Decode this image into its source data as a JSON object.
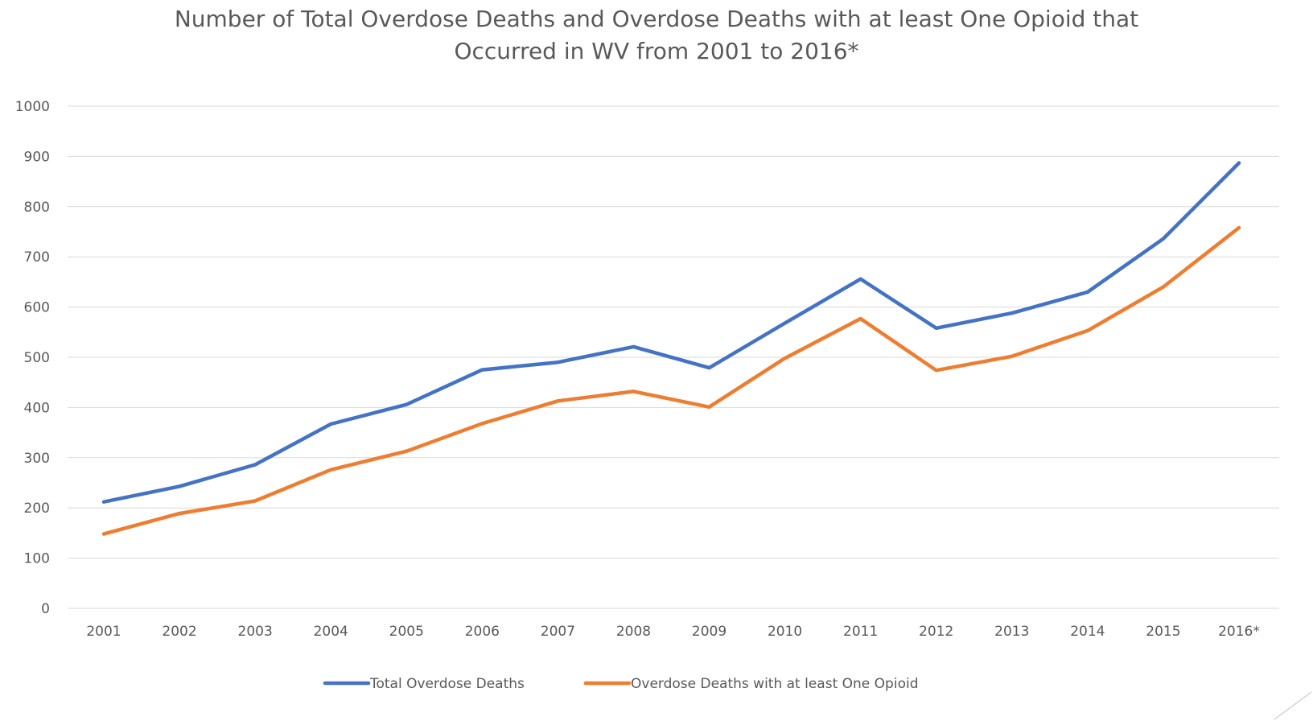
{
  "chart_data": {
    "type": "line",
    "title_lines": [
      "Number of Total Overdose Deaths and Overdose Deaths with at least One Opioid that",
      "Occurred in WV from 2001 to 2016*"
    ],
    "categories": [
      "2001",
      "2002",
      "2003",
      "2004",
      "2005",
      "2006",
      "2007",
      "2008",
      "2009",
      "2010",
      "2011",
      "2012",
      "2013",
      "2014",
      "2015",
      "2016*"
    ],
    "ylim": [
      0,
      1000
    ],
    "yticks": [
      0,
      100,
      200,
      300,
      400,
      500,
      600,
      700,
      800,
      900,
      1000
    ],
    "grid": true,
    "legend_position": "bottom",
    "series": [
      {
        "name": "Total Overdose Deaths",
        "color": "#4472C4",
        "values": [
          212,
          243,
          286,
          367,
          406,
          475,
          490,
          521,
          479,
          568,
          656,
          558,
          588,
          630,
          736,
          887
        ]
      },
      {
        "name": "Overdose Deaths with at least One Opioid",
        "color": "#ED7D31",
        "values": [
          148,
          189,
          214,
          276,
          313,
          368,
          413,
          432,
          401,
          498,
          577,
          474,
          502,
          553,
          640,
          758
        ]
      }
    ]
  }
}
